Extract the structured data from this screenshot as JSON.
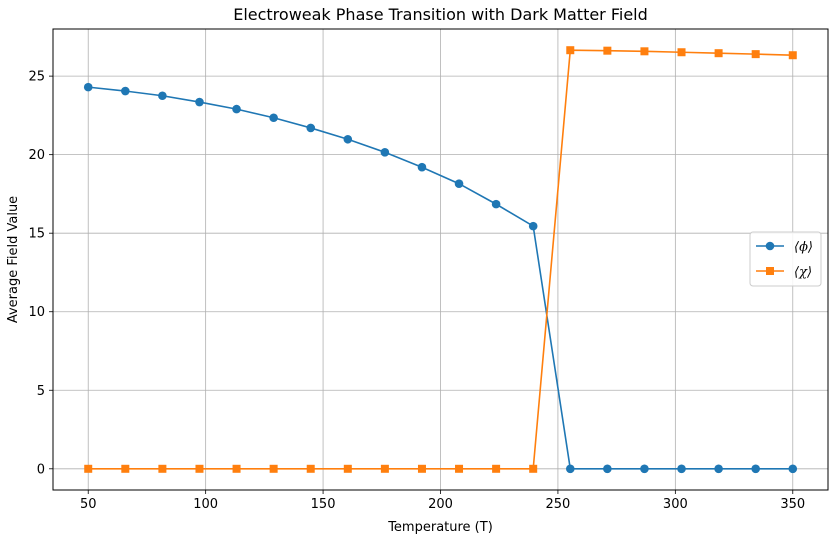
{
  "chart_data": {
    "type": "line",
    "title": "Electroweak Phase Transition with Dark Matter Field",
    "xlabel": "Temperature (T)",
    "ylabel": "Average Field Value",
    "xlim": [
      35,
      365
    ],
    "ylim": [
      -1.35,
      28.0
    ],
    "xticks": [
      50,
      100,
      150,
      200,
      250,
      300,
      350
    ],
    "yticks": [
      0,
      5,
      10,
      15,
      20,
      25
    ],
    "grid": true,
    "legend_position": "center-right",
    "x": [
      50,
      65.79,
      81.58,
      97.37,
      113.16,
      128.95,
      144.74,
      160.53,
      176.32,
      192.11,
      207.89,
      223.68,
      239.47,
      255.26,
      271.05,
      286.84,
      302.63,
      318.42,
      334.21,
      350
    ],
    "series": [
      {
        "name": "⟨ϕ⟩",
        "color": "#1f77b4",
        "marker": "circle",
        "values": [
          24.3,
          24.05,
          23.75,
          23.35,
          22.9,
          22.35,
          21.7,
          20.98,
          20.15,
          19.2,
          18.15,
          16.85,
          15.45,
          0,
          0,
          0,
          0,
          0,
          0,
          0
        ]
      },
      {
        "name": "⟨χ⟩",
        "color": "#ff7f0e",
        "marker": "square",
        "values": [
          0,
          0,
          0,
          0,
          0,
          0,
          0,
          0,
          0,
          0,
          0,
          0,
          0,
          26.65,
          26.62,
          26.58,
          26.52,
          26.46,
          26.4,
          26.33
        ]
      }
    ]
  }
}
